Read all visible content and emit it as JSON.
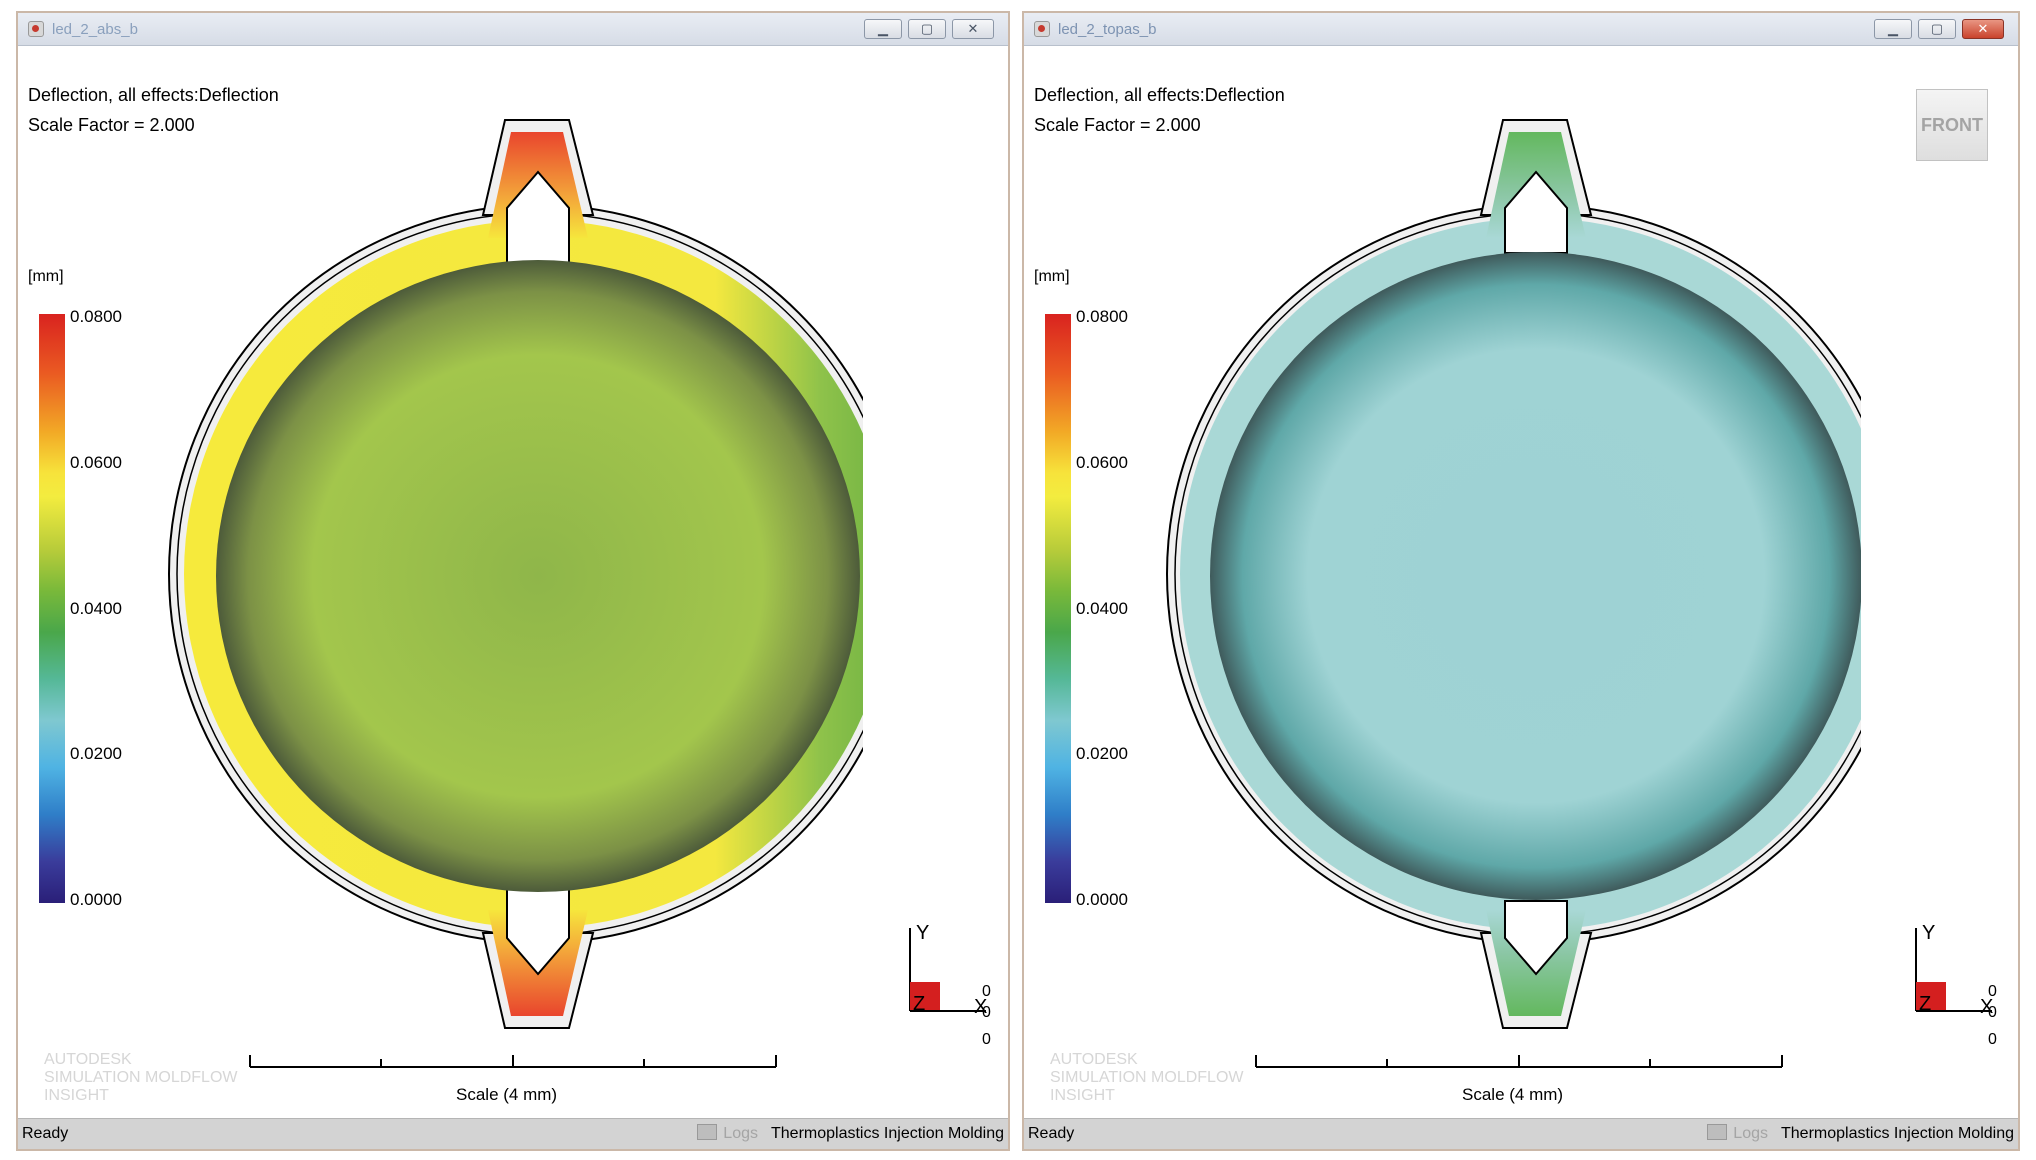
{
  "windows": [
    {
      "title": "led_2_abs_b",
      "result_label": "Deflection, all effects:Deflection",
      "scale_factor": "Scale Factor = 2.000",
      "unit": "[mm]",
      "legend_ticks": [
        "0.0800",
        "0.0600",
        "0.0400",
        "0.0200",
        "0.0000"
      ],
      "scale_label": "Scale (4 mm)",
      "watermark": [
        "AUTODESK",
        "SIMULATION MOLDFLOW",
        "INSIGHT"
      ],
      "axes": {
        "y": "Y",
        "z": "Z",
        "x": "X",
        "v1": "0",
        "v2": "0",
        "v3": "0"
      },
      "status": {
        "ready": "Ready",
        "logs": "Logs",
        "mode": "Thermoplastics Injection Molding"
      },
      "colors": {
        "ring": "#f6ea3c",
        "ring_right": "#8dc04a",
        "tab": "#ea5b2f",
        "lens": "#a2c54b"
      }
    },
    {
      "title": "led_2_topas_b",
      "result_label": "Deflection, all effects:Deflection",
      "scale_factor": "Scale Factor = 2.000",
      "unit": "[mm]",
      "legend_ticks": [
        "0.0800",
        "0.0600",
        "0.0400",
        "0.0200",
        "0.0000"
      ],
      "scale_label": "Scale (4 mm)",
      "view_cube": "FRONT",
      "watermark": [
        "AUTODESK",
        "SIMULATION MOLDFLOW",
        "INSIGHT"
      ],
      "axes": {
        "y": "Y",
        "z": "Z",
        "x": "X",
        "v1": "0",
        "v2": "0",
        "v3": "0"
      },
      "status": {
        "ready": "Ready",
        "logs": "Logs",
        "mode": "Thermoplastics Injection Molding"
      },
      "colors": {
        "ring": "#a9d8d6",
        "ring_right": "#a9d8d6",
        "tab": "#6cbc6a",
        "lens": "#9fd1d3"
      }
    }
  ]
}
